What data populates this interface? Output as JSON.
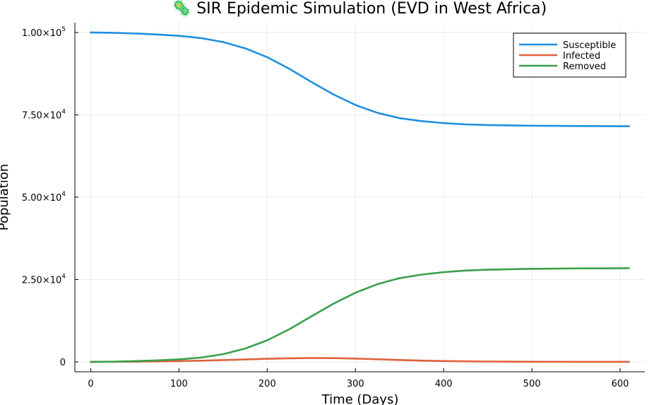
{
  "chart_data": {
    "type": "line",
    "title": "🦠 SIR Epidemic Simulation (EVD in West Africa)",
    "xlabel": "Time (Days)",
    "ylabel": "Population",
    "xlim": [
      -18,
      628
    ],
    "ylim": [
      -3000,
      103000
    ],
    "xticks": [
      0,
      100,
      200,
      300,
      400,
      500,
      600
    ],
    "xtick_labels": [
      "0",
      "100",
      "200",
      "300",
      "400",
      "500",
      "600"
    ],
    "yticks": [
      0,
      25000,
      50000,
      75000,
      100000
    ],
    "ytick_labels": [
      {
        "mantissa": "0",
        "exponent": ""
      },
      {
        "mantissa": "2.50×10",
        "exponent": "4"
      },
      {
        "mantissa": "5.00×10",
        "exponent": "4"
      },
      {
        "mantissa": "7.50×10",
        "exponent": "4"
      },
      {
        "mantissa": "1.00×10",
        "exponent": "5"
      }
    ],
    "grid": true,
    "legend_position": "top-right",
    "x": [
      0,
      25,
      50,
      75,
      100,
      125,
      150,
      175,
      200,
      225,
      250,
      275,
      300,
      325,
      350,
      375,
      400,
      425,
      450,
      475,
      500,
      525,
      550,
      575,
      600,
      610
    ],
    "series": [
      {
        "name": "Susceptible",
        "color": "#1f8fe0",
        "values": [
          100000,
          99900,
          99700,
          99400,
          99000,
          98300,
          97100,
          95200,
          92500,
          89000,
          85000,
          81200,
          78000,
          75600,
          74000,
          73100,
          72500,
          72100,
          71900,
          71800,
          71700,
          71650,
          71600,
          71580,
          71560,
          71550
        ]
      },
      {
        "name": "Infected",
        "color": "#e0603c",
        "values": [
          10,
          30,
          70,
          140,
          240,
          380,
          560,
          750,
          950,
          1100,
          1180,
          1150,
          1000,
          800,
          580,
          400,
          260,
          170,
          110,
          70,
          45,
          30,
          20,
          15,
          10,
          8
        ]
      },
      {
        "name": "Removed",
        "color": "#3aa04a",
        "values": [
          0,
          70,
          230,
          460,
          760,
          1320,
          2340,
          4050,
          6550,
          9900,
          13820,
          17650,
          21000,
          23600,
          25420,
          26500,
          27240,
          27730,
          27990,
          28130,
          28250,
          28320,
          28380,
          28400,
          28430,
          28440
        ]
      }
    ]
  }
}
